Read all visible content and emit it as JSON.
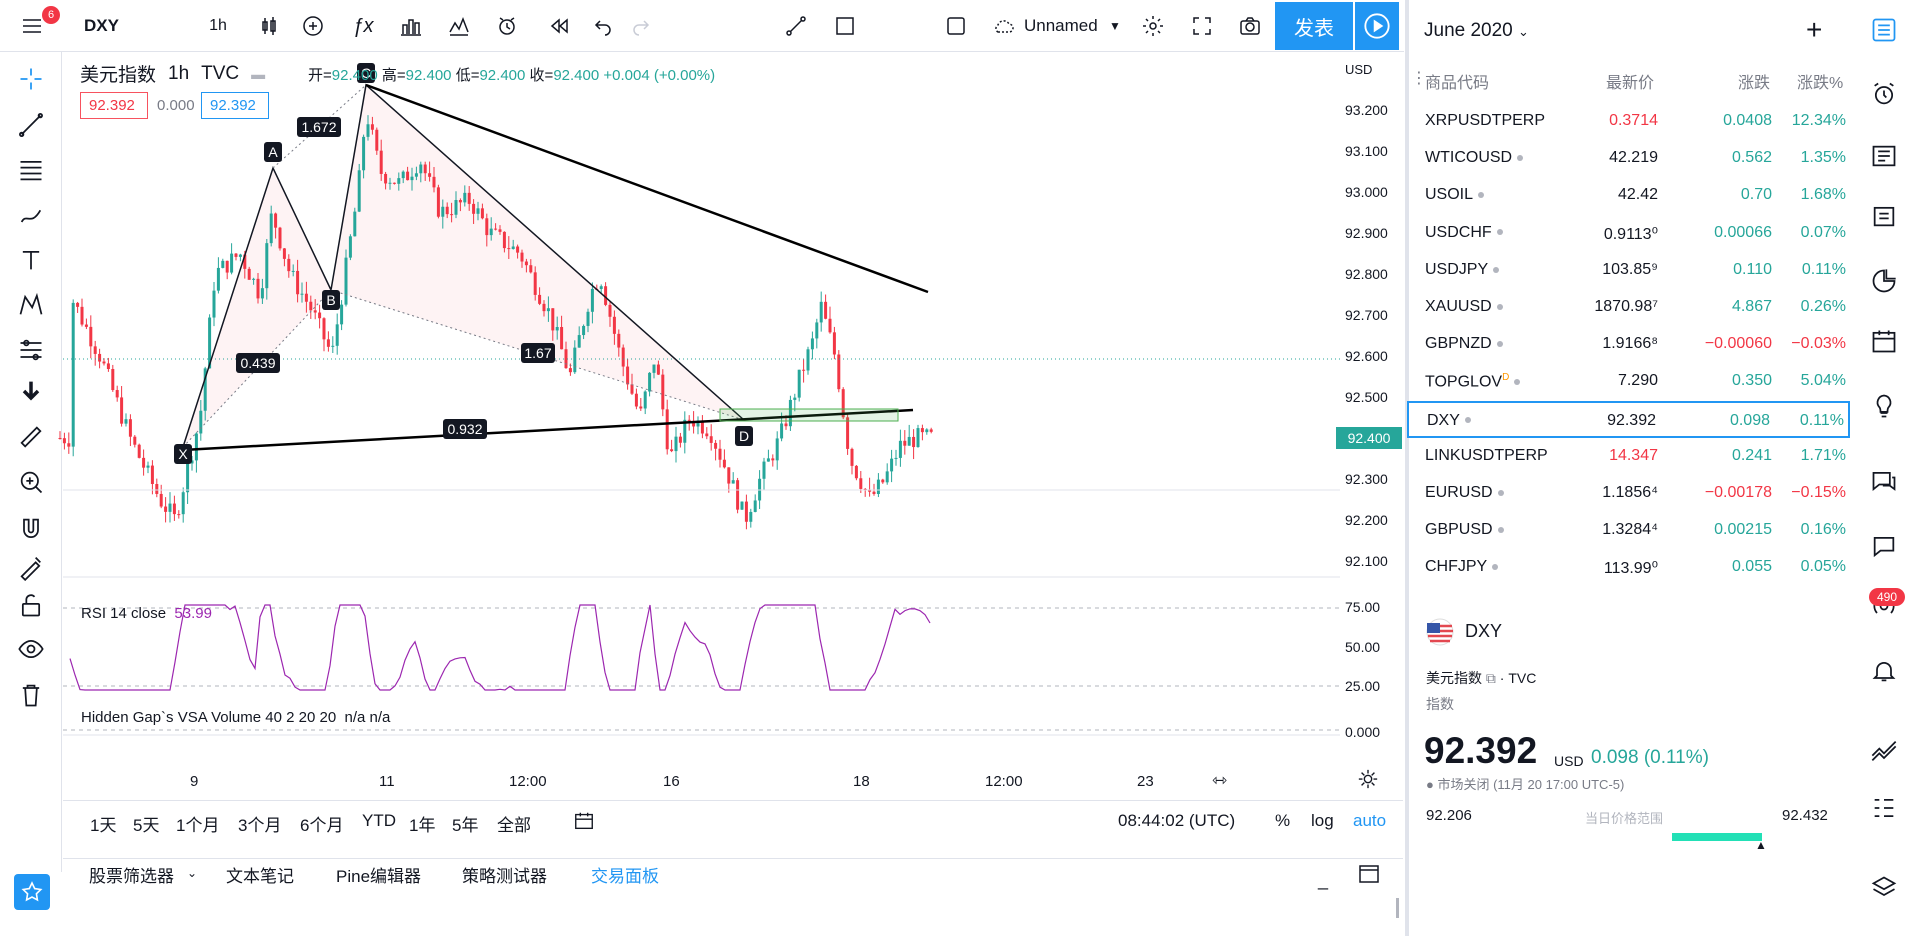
{
  "header": {
    "symbol": "DXY",
    "interval": "1h",
    "layout_name": "Unnamed",
    "publish": "发表",
    "menu_badge": "6"
  },
  "legend": {
    "name": "美元指数",
    "interval": "1h",
    "source": "TVC",
    "open_label": "开",
    "open": "92.400",
    "high_label": "高",
    "high": "92.400",
    "low_label": "低",
    "low": "92.400",
    "close_label": "收",
    "close": "92.400",
    "change": "+0.004 (+0.00%)",
    "bid": "92.392",
    "spread": "0.000",
    "ask": "92.392"
  },
  "indicators": {
    "rsi_label": "RSI 14 close",
    "rsi_value": "53.99",
    "vsa_label": "Hidden Gap`s VSA Volume 40 2 20 20",
    "vsa_v1": "n/a",
    "vsa_v2": "n/a"
  },
  "pattern": {
    "points": [
      "X",
      "A",
      "B",
      "C",
      "D"
    ],
    "ratios": {
      "xab": "0.439",
      "abc": "1.672",
      "bcd": "1.67",
      "xad": "0.932"
    }
  },
  "price_axis": {
    "currency": "USD",
    "ticks": [
      "93.200",
      "93.100",
      "93.000",
      "92.900",
      "92.800",
      "92.700",
      "92.600",
      "92.500",
      "92.300",
      "92.200",
      "92.100"
    ],
    "current": "92.400",
    "rsi_ticks": [
      "75.00",
      "50.00",
      "25.00"
    ],
    "vsa_tick": "0.000"
  },
  "time_axis": [
    "9",
    "11",
    "12:00",
    "16",
    "18",
    "12:00",
    "23"
  ],
  "range_bar": {
    "ranges": [
      "1天",
      "5天",
      "1个月",
      "3个月",
      "6个月",
      "YTD",
      "1年",
      "5年",
      "全部"
    ],
    "clock": "08:44:02 (UTC)",
    "pct": "%",
    "log": "log",
    "auto": "auto"
  },
  "bottom_tabs": [
    "股票筛选器",
    "文本笔记",
    "Pine编辑器",
    "策略测试器",
    "交易面板"
  ],
  "watchlist": {
    "title": "June 2020",
    "headers": {
      "symbol": "商品代码",
      "last": "最新价",
      "chg": "涨跌",
      "chgp": "涨跌%"
    },
    "rows": [
      {
        "sym": "XRPUSDTPERP",
        "last": "0.3714",
        "chg": "0.0408",
        "chgp": "12.34%",
        "dir": "pos",
        "lastcls": "neg",
        "dot": false
      },
      {
        "sym": "WTICOUSD",
        "last": "42.219",
        "chg": "0.562",
        "chgp": "1.35%",
        "dir": "pos",
        "lastcls": "",
        "dot": true
      },
      {
        "sym": "USOIL",
        "last": "42.42",
        "chg": "0.70",
        "chgp": "1.68%",
        "dir": "pos",
        "lastcls": "",
        "dot": true
      },
      {
        "sym": "USDCHF",
        "last": "0.9113⁰",
        "chg": "0.00066",
        "chgp": "0.07%",
        "dir": "pos",
        "lastcls": "",
        "dot": true
      },
      {
        "sym": "USDJPY",
        "last": "103.85⁹",
        "chg": "0.110",
        "chgp": "0.11%",
        "dir": "pos",
        "lastcls": "",
        "dot": true
      },
      {
        "sym": "XAUUSD",
        "last": "1870.98⁷",
        "chg": "4.867",
        "chgp": "0.26%",
        "dir": "pos",
        "lastcls": "",
        "dot": true
      },
      {
        "sym": "GBPNZD",
        "last": "1.9166⁸",
        "chg": "−0.00060",
        "chgp": "−0.03%",
        "dir": "neg",
        "lastcls": "",
        "dot": true
      },
      {
        "sym": "TOPGLOV",
        "last": "7.290",
        "chg": "0.350",
        "chgp": "5.04%",
        "dir": "pos",
        "lastcls": "",
        "dot": true,
        "sup": "D"
      },
      {
        "sym": "DXY",
        "last": "92.392",
        "chg": "0.098",
        "chgp": "0.11%",
        "dir": "pos",
        "lastcls": "",
        "dot": true
      },
      {
        "sym": "LINKUSDTPERP",
        "last": "14.347",
        "chg": "0.241",
        "chgp": "1.71%",
        "dir": "pos",
        "lastcls": "neg",
        "dot": false
      },
      {
        "sym": "EURUSD",
        "last": "1.1856⁴",
        "chg": "−0.00178",
        "chgp": "−0.15%",
        "dir": "neg",
        "lastcls": "",
        "dot": true
      },
      {
        "sym": "GBPUSD",
        "last": "1.3284⁴",
        "chg": "0.00215",
        "chgp": "0.16%",
        "dir": "pos",
        "lastcls": "",
        "dot": true
      },
      {
        "sym": "CHFJPY",
        "last": "113.99⁰",
        "chg": "0.055",
        "chgp": "0.05%",
        "dir": "pos",
        "lastcls": "",
        "dot": true
      }
    ]
  },
  "details": {
    "symbol": "DXY",
    "name": "美元指数",
    "exchange": "TVC",
    "type": "指数",
    "price": "92.392",
    "currency": "USD",
    "change": "0.098 (0.11%)",
    "status": "市场关闭 (11月 20 17:00 UTC-5)",
    "low": "92.206",
    "range_label": "当日价格范围",
    "high": "92.432"
  },
  "rail": {
    "badge": "490"
  },
  "colors": {
    "accent": "#2196f3",
    "up": "#26a69a",
    "down": "#f23645",
    "rsi": "#9c27b0"
  }
}
